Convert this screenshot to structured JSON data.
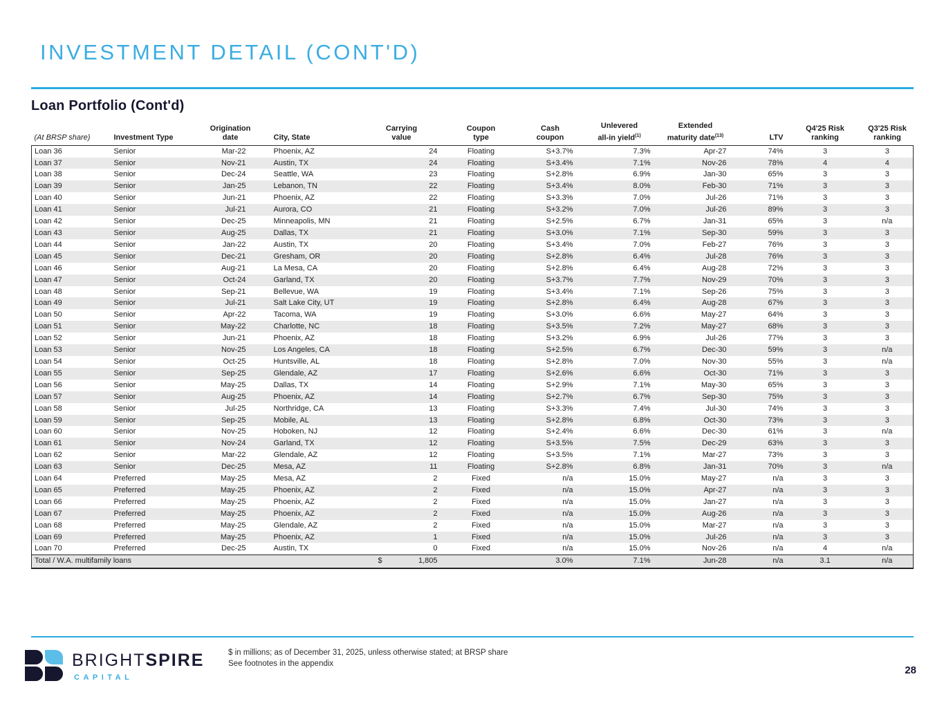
{
  "page": {
    "title": "INVESTMENT DETAIL (CONT'D)",
    "section_title": "Loan Portfolio (Cont'd)",
    "footnote_line1": "$ in millions; as of December 31, 2025, unless otherwise stated; at BRSP share",
    "footnote_line2": "See footnotes in the appendix",
    "page_number": "28"
  },
  "logo": {
    "brand_1": "BRIGHT",
    "brand_2": "SPIRE",
    "sub": "CAPITAL"
  },
  "colors": {
    "accent_blue": "#3BADE2",
    "rule_blue": "#29ABE2",
    "navy": "#16162F",
    "stripe_gray": "#e9e9e9"
  },
  "table": {
    "headers": [
      {
        "l1": "",
        "l2": "(At BRSP share)"
      },
      {
        "l1": "",
        "l2": "Investment Type"
      },
      {
        "l1": "Origination",
        "l2": "date"
      },
      {
        "l1": "",
        "l2": "City, State"
      },
      {
        "l1": "Carrying",
        "l2": "value"
      },
      {
        "l1": "Coupon",
        "l2": "type"
      },
      {
        "l1": "Cash",
        "l2": "coupon"
      },
      {
        "l1": "Unlevered",
        "l2": "all-in yield",
        "sup": "(1)"
      },
      {
        "l1": "Extended",
        "l2": "maturity date",
        "sup": "(13)"
      },
      {
        "l1": "",
        "l2": "LTV"
      },
      {
        "l1": "Q4'25 Risk",
        "l2": "ranking"
      },
      {
        "l1": "Q3'25 Risk",
        "l2": "ranking"
      }
    ],
    "rows": [
      [
        "Loan 36",
        "Senior",
        "Mar-22",
        "Phoenix, AZ",
        "24",
        "Floating",
        "S+3.7%",
        "7.3%",
        "Apr-27",
        "74%",
        "3",
        "3"
      ],
      [
        "Loan 37",
        "Senior",
        "Nov-21",
        "Austin, TX",
        "24",
        "Floating",
        "S+3.4%",
        "7.1%",
        "Nov-26",
        "78%",
        "4",
        "4"
      ],
      [
        "Loan 38",
        "Senior",
        "Dec-24",
        "Seattle, WA",
        "23",
        "Floating",
        "S+2.8%",
        "6.9%",
        "Jan-30",
        "65%",
        "3",
        "3"
      ],
      [
        "Loan 39",
        "Senior",
        "Jan-25",
        "Lebanon, TN",
        "22",
        "Floating",
        "S+3.4%",
        "8.0%",
        "Feb-30",
        "71%",
        "3",
        "3"
      ],
      [
        "Loan 40",
        "Senior",
        "Jun-21",
        "Phoenix, AZ",
        "22",
        "Floating",
        "S+3.3%",
        "7.0%",
        "Jul-26",
        "71%",
        "3",
        "3"
      ],
      [
        "Loan 41",
        "Senior",
        "Jul-21",
        "Aurora, CO",
        "21",
        "Floating",
        "S+3.2%",
        "7.0%",
        "Jul-26",
        "89%",
        "3",
        "3"
      ],
      [
        "Loan 42",
        "Senior",
        "Dec-25",
        "Minneapolis, MN",
        "21",
        "Floating",
        "S+2.5%",
        "6.7%",
        "Jan-31",
        "65%",
        "3",
        "n/a"
      ],
      [
        "Loan 43",
        "Senior",
        "Aug-25",
        "Dallas, TX",
        "21",
        "Floating",
        "S+3.0%",
        "7.1%",
        "Sep-30",
        "59%",
        "3",
        "3"
      ],
      [
        "Loan 44",
        "Senior",
        "Jan-22",
        "Austin, TX",
        "20",
        "Floating",
        "S+3.4%",
        "7.0%",
        "Feb-27",
        "76%",
        "3",
        "3"
      ],
      [
        "Loan 45",
        "Senior",
        "Dec-21",
        "Gresham, OR",
        "20",
        "Floating",
        "S+2.8%",
        "6.4%",
        "Jul-28",
        "76%",
        "3",
        "3"
      ],
      [
        "Loan 46",
        "Senior",
        "Aug-21",
        "La Mesa, CA",
        "20",
        "Floating",
        "S+2.8%",
        "6.4%",
        "Aug-28",
        "72%",
        "3",
        "3"
      ],
      [
        "Loan 47",
        "Senior",
        "Oct-24",
        "Garland, TX",
        "20",
        "Floating",
        "S+3.7%",
        "7.7%",
        "Nov-29",
        "70%",
        "3",
        "3"
      ],
      [
        "Loan 48",
        "Senior",
        "Sep-21",
        "Bellevue, WA",
        "19",
        "Floating",
        "S+3.4%",
        "7.1%",
        "Sep-26",
        "75%",
        "3",
        "3"
      ],
      [
        "Loan 49",
        "Senior",
        "Jul-21",
        "Salt Lake City, UT",
        "19",
        "Floating",
        "S+2.8%",
        "6.4%",
        "Aug-28",
        "67%",
        "3",
        "3"
      ],
      [
        "Loan 50",
        "Senior",
        "Apr-22",
        "Tacoma, WA",
        "19",
        "Floating",
        "S+3.0%",
        "6.6%",
        "May-27",
        "64%",
        "3",
        "3"
      ],
      [
        "Loan 51",
        "Senior",
        "May-22",
        "Charlotte, NC",
        "18",
        "Floating",
        "S+3.5%",
        "7.2%",
        "May-27",
        "68%",
        "3",
        "3"
      ],
      [
        "Loan 52",
        "Senior",
        "Jun-21",
        "Phoenix, AZ",
        "18",
        "Floating",
        "S+3.2%",
        "6.9%",
        "Jul-26",
        "77%",
        "3",
        "3"
      ],
      [
        "Loan 53",
        "Senior",
        "Nov-25",
        "Los Angeles, CA",
        "18",
        "Floating",
        "S+2.5%",
        "6.7%",
        "Dec-30",
        "59%",
        "3",
        "n/a"
      ],
      [
        "Loan 54",
        "Senior",
        "Oct-25",
        "Huntsville, AL",
        "18",
        "Floating",
        "S+2.8%",
        "7.0%",
        "Nov-30",
        "55%",
        "3",
        "n/a"
      ],
      [
        "Loan 55",
        "Senior",
        "Sep-25",
        "Glendale, AZ",
        "17",
        "Floating",
        "S+2.6%",
        "6.6%",
        "Oct-30",
        "71%",
        "3",
        "3"
      ],
      [
        "Loan 56",
        "Senior",
        "May-25",
        "Dallas, TX",
        "14",
        "Floating",
        "S+2.9%",
        "7.1%",
        "May-30",
        "65%",
        "3",
        "3"
      ],
      [
        "Loan 57",
        "Senior",
        "Aug-25",
        "Phoenix, AZ",
        "14",
        "Floating",
        "S+2.7%",
        "6.7%",
        "Sep-30",
        "75%",
        "3",
        "3"
      ],
      [
        "Loan 58",
        "Senior",
        "Jul-25",
        "Northridge, CA",
        "13",
        "Floating",
        "S+3.3%",
        "7.4%",
        "Jul-30",
        "74%",
        "3",
        "3"
      ],
      [
        "Loan 59",
        "Senior",
        "Sep-25",
        "Mobile, AL",
        "13",
        "Floating",
        "S+2.8%",
        "6.8%",
        "Oct-30",
        "73%",
        "3",
        "3"
      ],
      [
        "Loan 60",
        "Senior",
        "Nov-25",
        "Hoboken, NJ",
        "12",
        "Floating",
        "S+2.4%",
        "6.6%",
        "Dec-30",
        "61%",
        "3",
        "n/a"
      ],
      [
        "Loan 61",
        "Senior",
        "Nov-24",
        "Garland, TX",
        "12",
        "Floating",
        "S+3.5%",
        "7.5%",
        "Dec-29",
        "63%",
        "3",
        "3"
      ],
      [
        "Loan 62",
        "Senior",
        "Mar-22",
        "Glendale, AZ",
        "12",
        "Floating",
        "S+3.5%",
        "7.1%",
        "Mar-27",
        "73%",
        "3",
        "3"
      ],
      [
        "Loan 63",
        "Senior",
        "Dec-25",
        "Mesa, AZ",
        "11",
        "Floating",
        "S+2.8%",
        "6.8%",
        "Jan-31",
        "70%",
        "3",
        "n/a"
      ],
      [
        "Loan 64",
        "Preferred",
        "May-25",
        "Mesa, AZ",
        "2",
        "Fixed",
        "n/a",
        "15.0%",
        "May-27",
        "n/a",
        "3",
        "3"
      ],
      [
        "Loan 65",
        "Preferred",
        "May-25",
        "Phoenix, AZ",
        "2",
        "Fixed",
        "n/a",
        "15.0%",
        "Apr-27",
        "n/a",
        "3",
        "3"
      ],
      [
        "Loan 66",
        "Preferred",
        "May-25",
        "Phoenix, AZ",
        "2",
        "Fixed",
        "n/a",
        "15.0%",
        "Jan-27",
        "n/a",
        "3",
        "3"
      ],
      [
        "Loan 67",
        "Preferred",
        "May-25",
        "Phoenix, AZ",
        "2",
        "Fixed",
        "n/a",
        "15.0%",
        "Aug-26",
        "n/a",
        "3",
        "3"
      ],
      [
        "Loan 68",
        "Preferred",
        "May-25",
        "Glendale, AZ",
        "2",
        "Fixed",
        "n/a",
        "15.0%",
        "Mar-27",
        "n/a",
        "3",
        "3"
      ],
      [
        "Loan 69",
        "Preferred",
        "May-25",
        "Phoenix, AZ",
        "1",
        "Fixed",
        "n/a",
        "15.0%",
        "Jul-26",
        "n/a",
        "3",
        "3"
      ],
      [
        "Loan 70",
        "Preferred",
        "Dec-25",
        "Austin, TX",
        "0",
        "Fixed",
        "n/a",
        "15.0%",
        "Nov-26",
        "n/a",
        "4",
        "n/a"
      ]
    ],
    "total_row": {
      "label": "Total / W.A. multifamily loans",
      "currency": "$",
      "carrying_value": "1,805",
      "cash_coupon": "3.0%",
      "unlevered_yield": "7.1%",
      "extended_maturity": "Jun-28",
      "ltv": "n/a",
      "q4_risk": "3.1",
      "q3_risk": "n/a"
    }
  }
}
